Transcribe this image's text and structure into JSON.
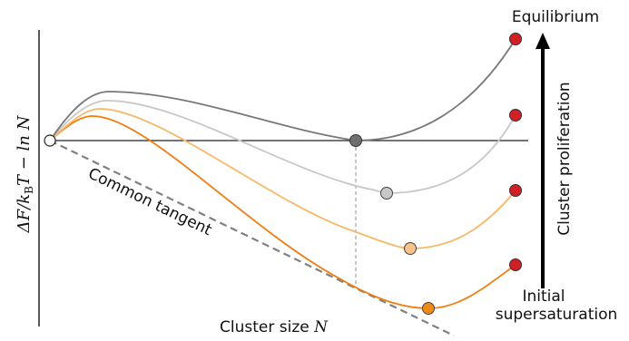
{
  "labels": {
    "equilibrium": "Equilibrium",
    "initial_line1": "Initial",
    "initial_line2": "supersaturation",
    "cluster_proliferation": "Cluster proliferation",
    "common_tangent": "Common tangent",
    "xlabel_text": "Cluster size ",
    "xlabel_var": "N",
    "ylabel_delta": "ΔF/k",
    "ylabel_sub": "B",
    "ylabel_rest": "T − ln N"
  },
  "colors": {
    "axis": "#000000",
    "baseline": "#222222",
    "tangent": "#808080",
    "dashed_marker": "#9a9a9a",
    "curve_equilibrium": "#787878",
    "curve_2": "#c8c8c8",
    "curve_3": "#f8b868",
    "curve_initial": "#f07c10",
    "endpoint_red": "#d11f26",
    "min_equilibrium": "#6f6f6f",
    "min_2": "#c8c8c8",
    "min_3": "#f8c38a",
    "min_initial": "#f08a16"
  },
  "arrow": "up-arrow"
}
